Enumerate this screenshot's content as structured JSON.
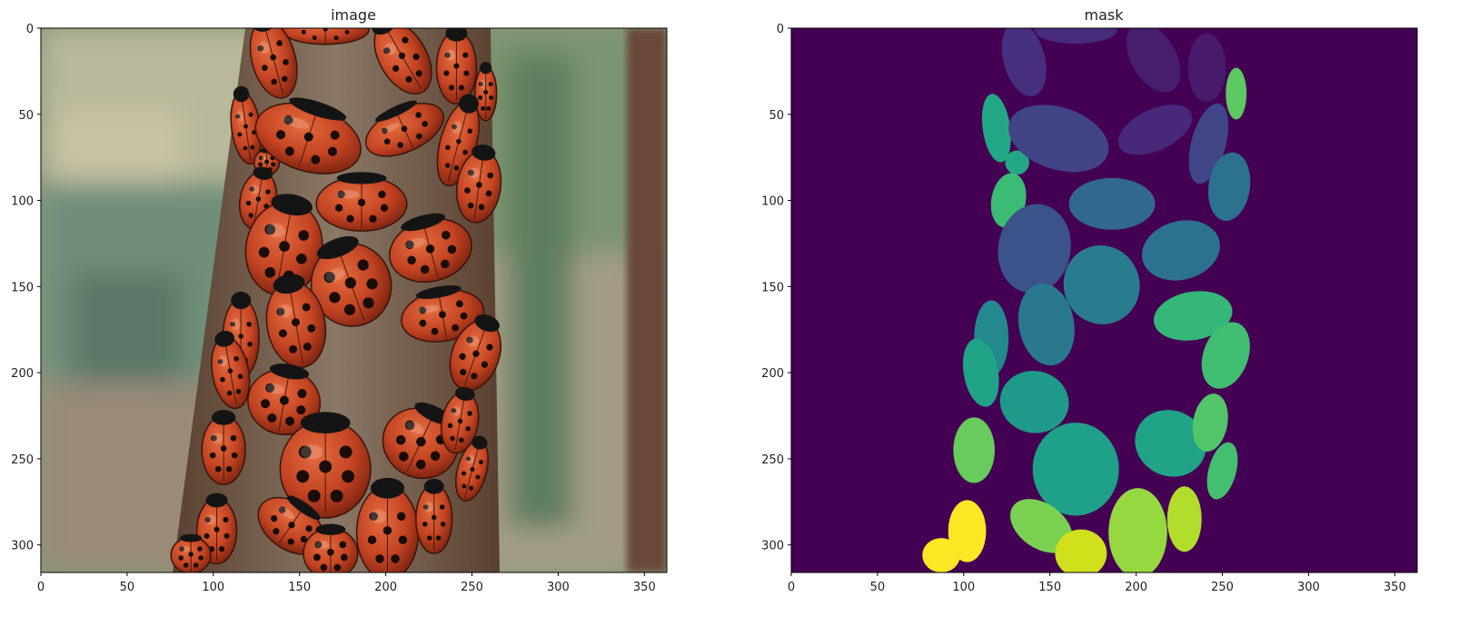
{
  "chart_data": [
    {
      "type": "image",
      "title": "image",
      "image_size": [
        363,
        316
      ],
      "xticks": [
        0,
        50,
        100,
        150,
        200,
        250,
        300,
        350
      ],
      "yticks": [
        0,
        50,
        100,
        150,
        200,
        250,
        300
      ],
      "xlim": [
        0,
        363
      ],
      "ylim": [
        316,
        0
      ],
      "content": "photo of red-orange ladybugs with black spots clustered on a tree trunk, blurred green grass background"
    },
    {
      "type": "heatmap",
      "title": "mask",
      "colormap": "viridis",
      "image_size": [
        363,
        316
      ],
      "xticks": [
        0,
        50,
        100,
        150,
        200,
        250,
        300,
        350
      ],
      "yticks": [
        0,
        50,
        100,
        150,
        200,
        250,
        300
      ],
      "xlim": [
        0,
        363
      ],
      "ylim": [
        316,
        0
      ],
      "background_color": "#440154",
      "instances": [
        {
          "cx": 165,
          "cy": 1,
          "rx": 24,
          "ry": 8,
          "angle": 0,
          "color": "#472a7a"
        },
        {
          "cx": 135,
          "cy": 18,
          "rx": 12,
          "ry": 22,
          "angle": -15,
          "color": "#46307e"
        },
        {
          "cx": 210,
          "cy": 17,
          "rx": 13,
          "ry": 22,
          "angle": -30,
          "color": "#471d6f"
        },
        {
          "cx": 241,
          "cy": 23,
          "rx": 11,
          "ry": 20,
          "angle": 0,
          "color": "#481a6c"
        },
        {
          "cx": 258,
          "cy": 38,
          "rx": 6,
          "ry": 15,
          "angle": 0,
          "color": "#5ec962"
        },
        {
          "cx": 119,
          "cy": 58,
          "rx": 8,
          "ry": 20,
          "angle": -8,
          "color": "#22a884"
        },
        {
          "cx": 131,
          "cy": 78,
          "rx": 7,
          "ry": 7,
          "angle": 0,
          "color": "#22a884"
        },
        {
          "cx": 155,
          "cy": 64,
          "rx": 30,
          "ry": 18,
          "angle": 18,
          "color": "#414487"
        },
        {
          "cx": 211,
          "cy": 59,
          "rx": 23,
          "ry": 12,
          "angle": -25,
          "color": "#482878"
        },
        {
          "cx": 242,
          "cy": 67,
          "rx": 10,
          "ry": 24,
          "angle": 15,
          "color": "#404688"
        },
        {
          "cx": 126,
          "cy": 100,
          "rx": 10,
          "ry": 16,
          "angle": 10,
          "color": "#3cbb75"
        },
        {
          "cx": 186,
          "cy": 102,
          "rx": 25,
          "ry": 15,
          "angle": 0,
          "color": "#31688e"
        },
        {
          "cx": 254,
          "cy": 92,
          "rx": 12,
          "ry": 20,
          "angle": 8,
          "color": "#2c728e"
        },
        {
          "cx": 141,
          "cy": 128,
          "rx": 21,
          "ry": 26,
          "angle": 10,
          "color": "#3b528b"
        },
        {
          "cx": 226,
          "cy": 129,
          "rx": 23,
          "ry": 17,
          "angle": -15,
          "color": "#2c728e"
        },
        {
          "cx": 180,
          "cy": 149,
          "rx": 22,
          "ry": 23,
          "angle": -20,
          "color": "#287c8e"
        },
        {
          "cx": 148,
          "cy": 172,
          "rx": 16,
          "ry": 24,
          "angle": -10,
          "color": "#2a788e"
        },
        {
          "cx": 116,
          "cy": 180,
          "rx": 10,
          "ry": 22,
          "angle": 0,
          "color": "#23898e"
        },
        {
          "cx": 233,
          "cy": 167,
          "rx": 23,
          "ry": 14,
          "angle": -10,
          "color": "#35b779"
        },
        {
          "cx": 252,
          "cy": 190,
          "rx": 13,
          "ry": 20,
          "angle": 20,
          "color": "#40bd72"
        },
        {
          "cx": 110,
          "cy": 200,
          "rx": 10,
          "ry": 20,
          "angle": -10,
          "color": "#20a386"
        },
        {
          "cx": 141,
          "cy": 217,
          "rx": 20,
          "ry": 18,
          "angle": 10,
          "color": "#1f998a"
        },
        {
          "cx": 106,
          "cy": 245,
          "rx": 12,
          "ry": 19,
          "angle": 0,
          "color": "#67cc5c"
        },
        {
          "cx": 165,
          "cy": 256,
          "rx": 25,
          "ry": 27,
          "angle": 0,
          "color": "#1fa088"
        },
        {
          "cx": 220,
          "cy": 241,
          "rx": 21,
          "ry": 19,
          "angle": 25,
          "color": "#20a386"
        },
        {
          "cx": 243,
          "cy": 229,
          "rx": 10,
          "ry": 17,
          "angle": 10,
          "color": "#52c569"
        },
        {
          "cx": 250,
          "cy": 257,
          "rx": 8,
          "ry": 17,
          "angle": 15,
          "color": "#44bf70"
        },
        {
          "cx": 145,
          "cy": 289,
          "rx": 20,
          "ry": 13,
          "angle": 35,
          "color": "#7ad151"
        },
        {
          "cx": 102,
          "cy": 292,
          "rx": 11,
          "ry": 18,
          "angle": 0,
          "color": "#fde725"
        },
        {
          "cx": 87,
          "cy": 306,
          "rx": 11,
          "ry": 10,
          "angle": 0,
          "color": "#fde725"
        },
        {
          "cx": 168,
          "cy": 305,
          "rx": 15,
          "ry": 14,
          "angle": 0,
          "color": "#d0e11c"
        },
        {
          "cx": 201,
          "cy": 293,
          "rx": 17,
          "ry": 26,
          "angle": 0,
          "color": "#95d840"
        },
        {
          "cx": 228,
          "cy": 285,
          "rx": 10,
          "ry": 19,
          "angle": 0,
          "color": "#b2dd2d"
        }
      ]
    }
  ]
}
